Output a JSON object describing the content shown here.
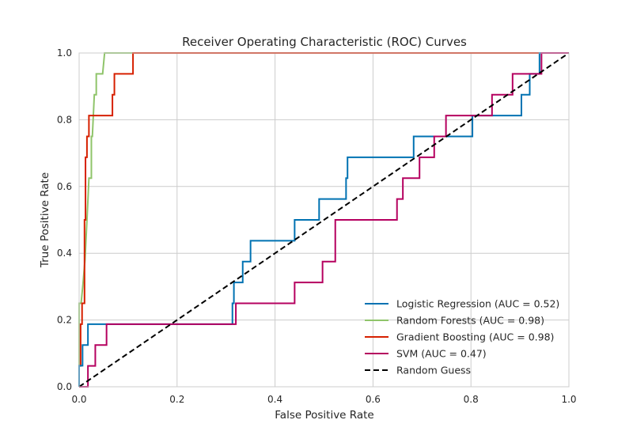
{
  "chart_data": {
    "type": "line",
    "title": "Receiver Operating Characteristic (ROC) Curves",
    "xlabel": "False Positive Rate",
    "ylabel": "True Positive Rate",
    "xlim": [
      0.0,
      1.0
    ],
    "ylim": [
      0.0,
      1.0
    ],
    "xticks": [
      "0.0",
      "0.2",
      "0.4",
      "0.6",
      "0.8",
      "1.0"
    ],
    "yticks": [
      "0.0",
      "0.2",
      "0.4",
      "0.6",
      "0.8",
      "1.0"
    ],
    "grid": true,
    "legend_position": "lower-right",
    "series": [
      {
        "name": "Logistic Regression (AUC = 0.52)",
        "color": "#0072b2",
        "style": "solid",
        "points": [
          [
            0,
            0
          ],
          [
            0,
            0.063
          ],
          [
            0.007,
            0.063
          ],
          [
            0.007,
            0.125
          ],
          [
            0.018,
            0.125
          ],
          [
            0.018,
            0.1875
          ],
          [
            0.313,
            0.1875
          ],
          [
            0.313,
            0.25
          ],
          [
            0.316,
            0.25
          ],
          [
            0.316,
            0.3125
          ],
          [
            0.334,
            0.3125
          ],
          [
            0.334,
            0.375
          ],
          [
            0.35,
            0.375
          ],
          [
            0.35,
            0.4375
          ],
          [
            0.44,
            0.4375
          ],
          [
            0.44,
            0.5
          ],
          [
            0.49,
            0.5
          ],
          [
            0.49,
            0.5625
          ],
          [
            0.545,
            0.5625
          ],
          [
            0.545,
            0.625
          ],
          [
            0.548,
            0.625
          ],
          [
            0.548,
            0.6875
          ],
          [
            0.683,
            0.6875
          ],
          [
            0.683,
            0.75
          ],
          [
            0.803,
            0.75
          ],
          [
            0.803,
            0.8125
          ],
          [
            0.903,
            0.8125
          ],
          [
            0.903,
            0.875
          ],
          [
            0.92,
            0.875
          ],
          [
            0.92,
            0.9375
          ],
          [
            0.94,
            0.9375
          ],
          [
            0.94,
            1.0
          ],
          [
            1.0,
            1.0
          ]
        ]
      },
      {
        "name": "Random Forests (AUC = 0.98)",
        "color": "#8fc46a",
        "style": "solid",
        "points": [
          [
            0,
            0
          ],
          [
            0,
            0.25
          ],
          [
            0.004,
            0.25
          ],
          [
            0.008,
            0.31
          ],
          [
            0.012,
            0.38
          ],
          [
            0.016,
            0.5
          ],
          [
            0.018,
            0.56
          ],
          [
            0.02,
            0.625
          ],
          [
            0.025,
            0.625
          ],
          [
            0.025,
            0.75
          ],
          [
            0.027,
            0.75
          ],
          [
            0.031,
            0.875
          ],
          [
            0.035,
            0.875
          ],
          [
            0.035,
            0.9375
          ],
          [
            0.048,
            0.9375
          ],
          [
            0.052,
            1.0
          ],
          [
            1.0,
            1.0
          ]
        ]
      },
      {
        "name": "Gradient Boosting (AUC = 0.98)",
        "color": "#d62000",
        "style": "solid",
        "points": [
          [
            0,
            0
          ],
          [
            0,
            0.0625
          ],
          [
            0.003,
            0.0625
          ],
          [
            0.003,
            0.1875
          ],
          [
            0.006,
            0.1875
          ],
          [
            0.006,
            0.25
          ],
          [
            0.011,
            0.25
          ],
          [
            0.011,
            0.5
          ],
          [
            0.013,
            0.5
          ],
          [
            0.013,
            0.6875
          ],
          [
            0.016,
            0.6875
          ],
          [
            0.016,
            0.75
          ],
          [
            0.02,
            0.75
          ],
          [
            0.02,
            0.8125
          ],
          [
            0.068,
            0.8125
          ],
          [
            0.068,
            0.875
          ],
          [
            0.072,
            0.875
          ],
          [
            0.072,
            0.9375
          ],
          [
            0.11,
            0.9375
          ],
          [
            0.11,
            1.0
          ],
          [
            1.0,
            1.0
          ]
        ]
      },
      {
        "name": "SVM (AUC = 0.47)",
        "color": "#b5005f",
        "style": "solid",
        "points": [
          [
            0,
            0
          ],
          [
            0.018,
            0
          ],
          [
            0.018,
            0.0625
          ],
          [
            0.033,
            0.0625
          ],
          [
            0.033,
            0.125
          ],
          [
            0.056,
            0.125
          ],
          [
            0.056,
            0.1875
          ],
          [
            0.32,
            0.1875
          ],
          [
            0.32,
            0.25
          ],
          [
            0.44,
            0.25
          ],
          [
            0.44,
            0.3125
          ],
          [
            0.497,
            0.3125
          ],
          [
            0.497,
            0.375
          ],
          [
            0.523,
            0.375
          ],
          [
            0.523,
            0.5
          ],
          [
            0.649,
            0.5
          ],
          [
            0.649,
            0.5625
          ],
          [
            0.661,
            0.5625
          ],
          [
            0.661,
            0.625
          ],
          [
            0.695,
            0.625
          ],
          [
            0.695,
            0.6875
          ],
          [
            0.725,
            0.6875
          ],
          [
            0.725,
            0.75
          ],
          [
            0.749,
            0.75
          ],
          [
            0.749,
            0.8125
          ],
          [
            0.843,
            0.8125
          ],
          [
            0.843,
            0.875
          ],
          [
            0.885,
            0.875
          ],
          [
            0.885,
            0.9375
          ],
          [
            0.944,
            0.9375
          ],
          [
            0.944,
            1.0
          ],
          [
            1.0,
            1.0
          ]
        ]
      },
      {
        "name": "Random Guess",
        "color": "#000000",
        "style": "dashed",
        "points": [
          [
            0,
            0
          ],
          [
            1,
            1
          ]
        ]
      }
    ]
  }
}
